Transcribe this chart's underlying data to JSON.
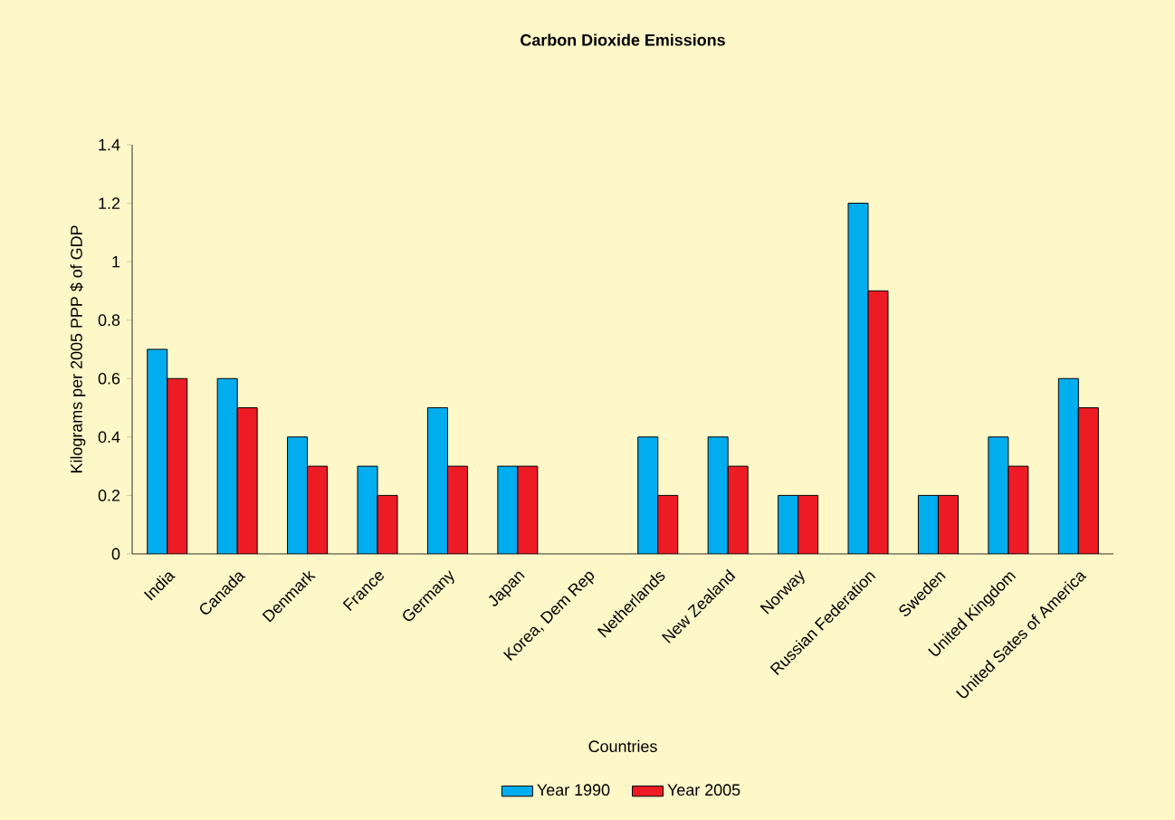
{
  "chart_data": {
    "type": "bar",
    "title": "Carbon Dioxide Emissions",
    "xlabel": "Countries",
    "ylabel": "Kilograms per 2005 PPP $ of GDP",
    "categories": [
      "India",
      "Canada",
      "Denmark",
      "France",
      "Germany",
      "Japan",
      "Korea, Dem Rep",
      "Netherlands",
      "New Zealand",
      "Norway",
      "Russian Federation",
      "Sweden",
      "United Kingdom",
      "United Sates of America"
    ],
    "series": [
      {
        "name": "Year 1990",
        "color": "#00aeef",
        "values": [
          0.7,
          0.6,
          0.4,
          0.3,
          0.5,
          0.3,
          null,
          0.4,
          0.4,
          0.2,
          1.2,
          0.2,
          0.4,
          0.6
        ]
      },
      {
        "name": "Year 2005",
        "color": "#ed1c24",
        "values": [
          0.6,
          0.5,
          0.3,
          0.2,
          0.3,
          0.3,
          null,
          0.2,
          0.3,
          0.2,
          0.9,
          0.2,
          0.3,
          0.5
        ]
      }
    ],
    "ylim": [
      0,
      1.4
    ],
    "yticks": [
      0,
      0.2,
      0.4,
      0.6,
      0.8,
      1,
      1.2,
      1.4
    ],
    "legend": "bottom"
  }
}
